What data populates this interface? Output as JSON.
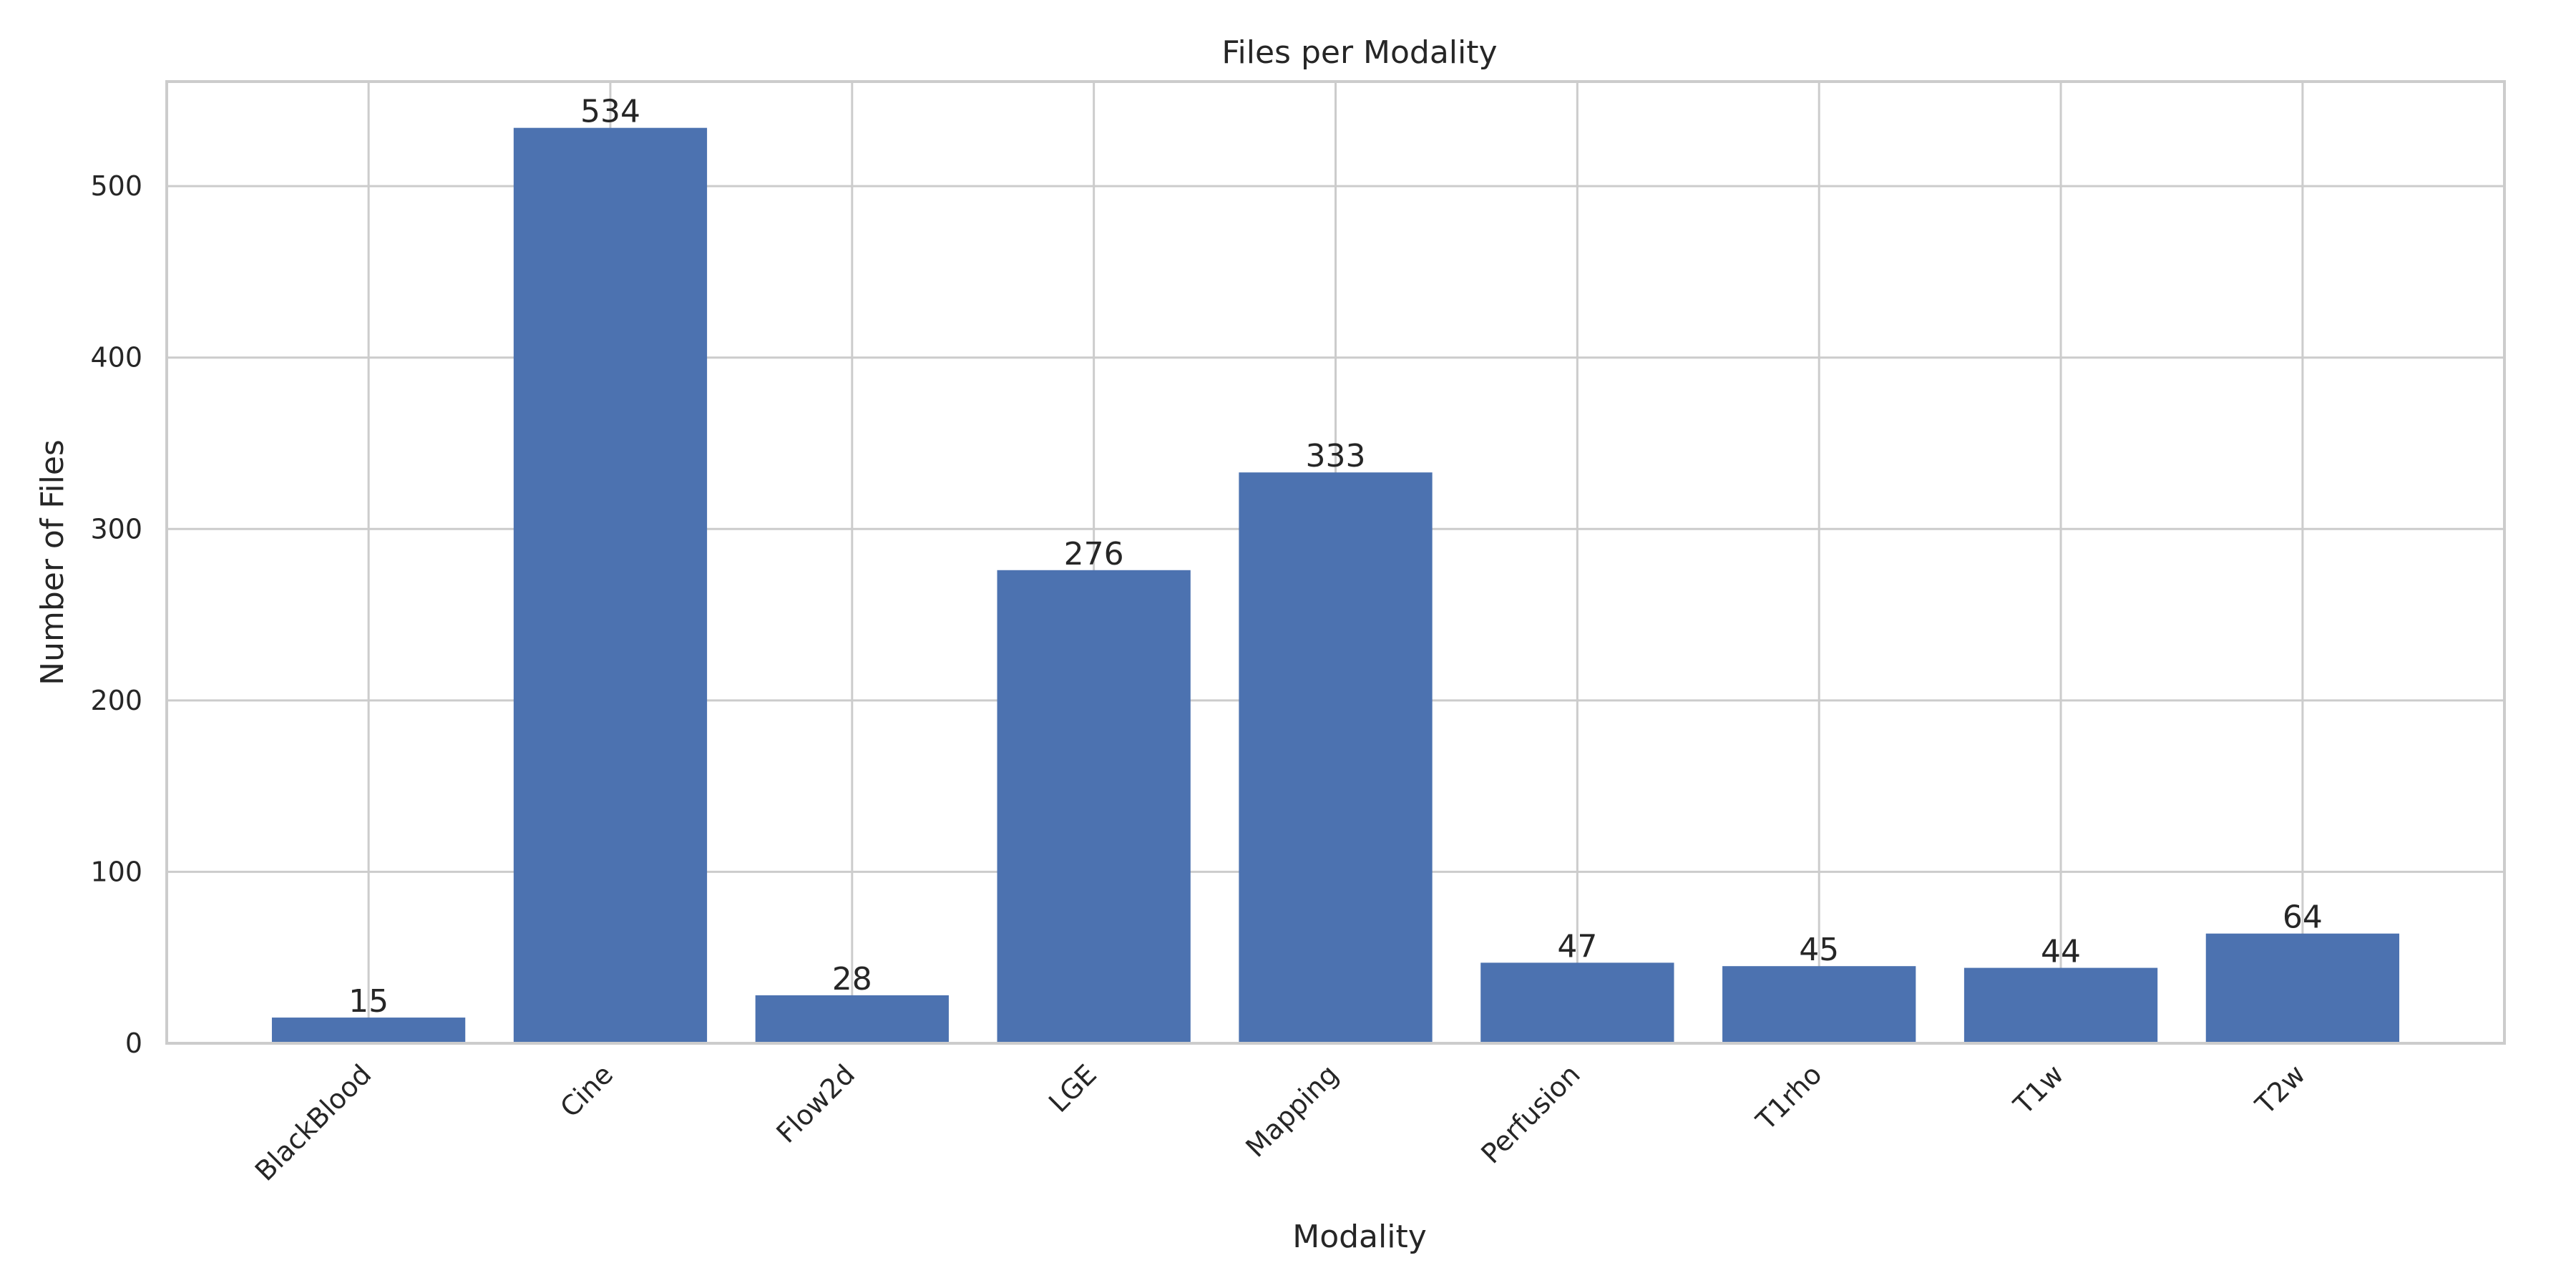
{
  "chart_data": {
    "type": "bar",
    "title": "Files per Modality",
    "xlabel": "Modality",
    "ylabel": "Number of Files",
    "categories": [
      "BlackBlood",
      "Cine",
      "Flow2d",
      "LGE",
      "Mapping",
      "Perfusion",
      "T1rho",
      "T1w",
      "T2w"
    ],
    "values": [
      15,
      534,
      28,
      276,
      333,
      47,
      45,
      44,
      64
    ],
    "ylim": [
      0,
      561
    ],
    "yticks": [
      0,
      100,
      200,
      300,
      400,
      500
    ],
    "grid": true,
    "legend": "none",
    "bar_color": "#4c72b0"
  }
}
